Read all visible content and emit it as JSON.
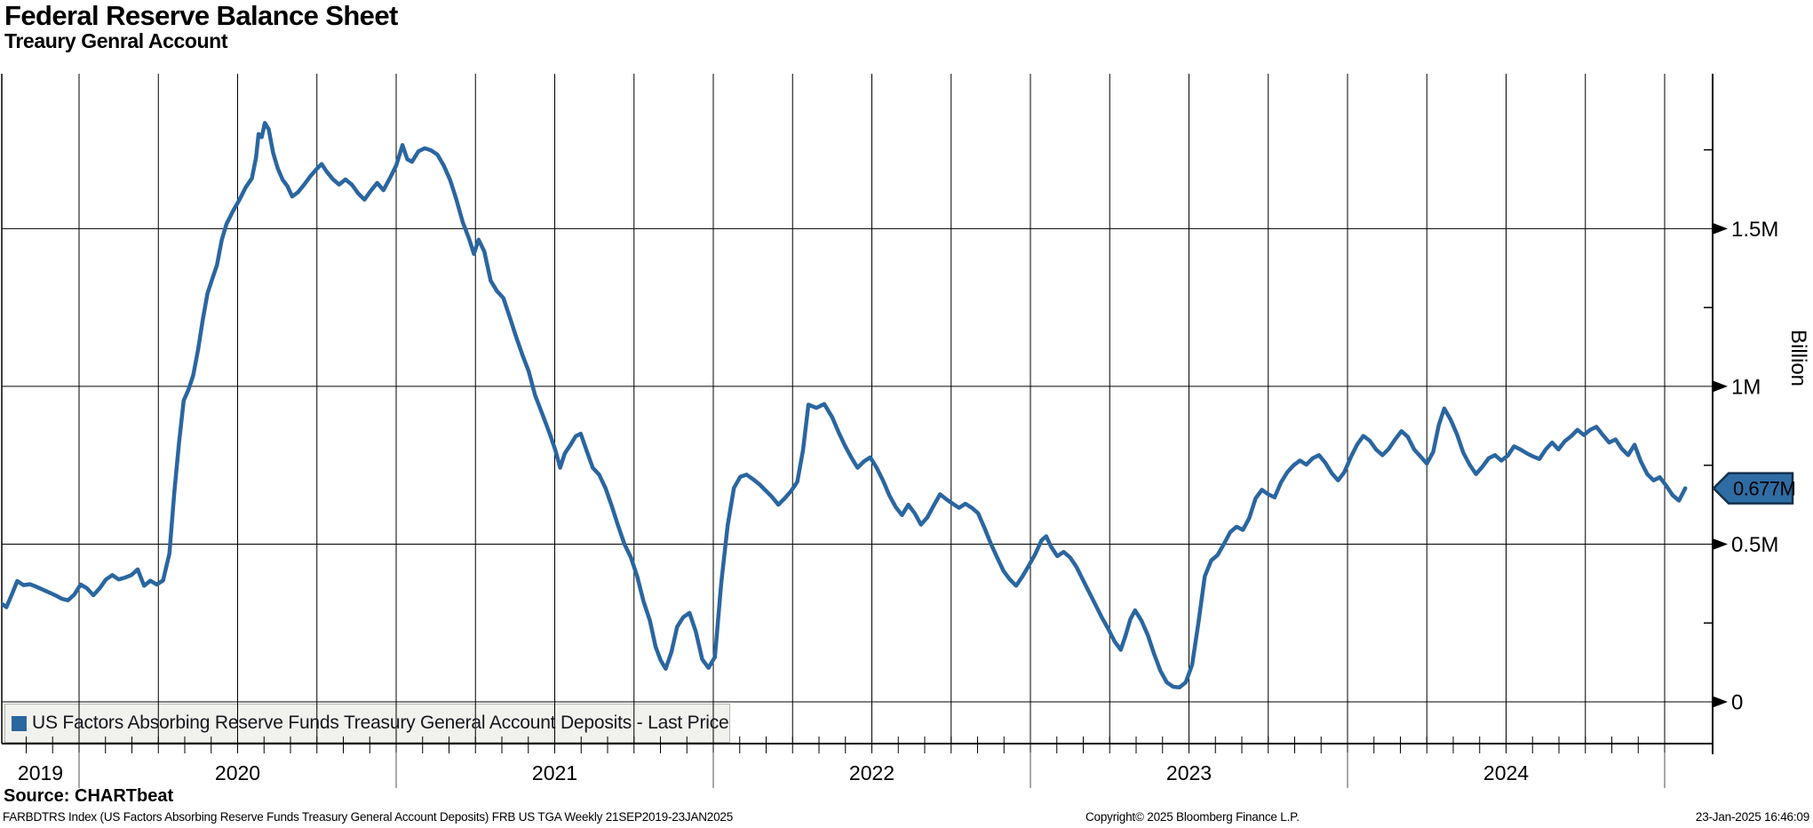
{
  "title": "Federal Reserve Balance Sheet",
  "subtitle": "Treaury Genral Account",
  "legend": {
    "swatch_color": "#2a66a0",
    "label": "US Factors Absorbing Reserve Funds Treasury General Account Deposits - Last Price"
  },
  "y_axis": {
    "title": "Billion",
    "minor_ticks": [
      0.25,
      0.75,
      1.25,
      1.75
    ]
  },
  "x_axis": {
    "year_labels": [
      "2019",
      "2020",
      "2021",
      "2022",
      "2023",
      "2024"
    ]
  },
  "last_price": {
    "label": "0.677M",
    "value": 0.677
  },
  "colors": {
    "line": "#2a66a0",
    "grid": "#000000",
    "flag_fill": "#2e6da4",
    "flag_border": "#14304d",
    "flag_text": "#ffffff",
    "year_separator": "#8a8a8a"
  },
  "footer": {
    "source": "Source: CHARTbeat",
    "description": "FARBDTRS Index (US Factors Absorbing Reserve Funds Treasury General Account Deposits) FRB US TGA  Weekly 21SEP2019-23JAN2025",
    "copyright": "Copyright© 2025 Bloomberg Finance L.P.",
    "timestamp": "23-Jan-2025 16:46:09"
  },
  "chart_data": {
    "type": "line",
    "title": "Federal Reserve Balance Sheet - Treasury General Account",
    "xlabel": "Date (weekly, 21SEP2019 - 23JAN2025)",
    "ylabel": "Billion",
    "x_range": [
      2019.751,
      2025.065
    ],
    "y_range": [
      0,
      1.9
    ],
    "y_tick_values": [
      0,
      0.5,
      1,
      1.5
    ],
    "y_tick_labels": [
      "0",
      "0.5M",
      "1M",
      "1.5M"
    ],
    "x_tick_years": [
      2019,
      2020,
      2021,
      2022,
      2023,
      2024
    ],
    "grid": "vertical quarterly lines, horizontal every 0.5M",
    "legend_position": "bottom-left",
    "series": [
      {
        "name": "US Factors Absorbing Reserve Funds Treasury General Account Deposits - Last Price",
        "color": "#2a66a0",
        "last_value": 0.677,
        "points": [
          [
            2019.751,
            0.315
          ],
          [
            2019.771,
            0.3
          ],
          [
            2019.79,
            0.345
          ],
          [
            2019.805,
            0.383
          ],
          [
            2019.825,
            0.37
          ],
          [
            2019.845,
            0.373
          ],
          [
            2019.865,
            0.365
          ],
          [
            2019.885,
            0.356
          ],
          [
            2019.905,
            0.347
          ],
          [
            2019.925,
            0.338
          ],
          [
            2019.945,
            0.327
          ],
          [
            2019.965,
            0.322
          ],
          [
            2019.985,
            0.34
          ],
          [
            2020.005,
            0.372
          ],
          [
            2020.025,
            0.36
          ],
          [
            2020.045,
            0.338
          ],
          [
            2020.065,
            0.36
          ],
          [
            2020.085,
            0.388
          ],
          [
            2020.105,
            0.402
          ],
          [
            2020.125,
            0.388
          ],
          [
            2020.145,
            0.394
          ],
          [
            2020.165,
            0.402
          ],
          [
            2020.185,
            0.42
          ],
          [
            2020.205,
            0.368
          ],
          [
            2020.225,
            0.384
          ],
          [
            2020.245,
            0.372
          ],
          [
            2020.265,
            0.385
          ],
          [
            2020.285,
            0.47
          ],
          [
            2020.3,
            0.66
          ],
          [
            2020.315,
            0.82
          ],
          [
            2020.33,
            0.955
          ],
          [
            2020.345,
            0.99
          ],
          [
            2020.36,
            1.035
          ],
          [
            2020.375,
            1.115
          ],
          [
            2020.39,
            1.21
          ],
          [
            2020.405,
            1.295
          ],
          [
            2020.42,
            1.34
          ],
          [
            2020.435,
            1.385
          ],
          [
            2020.45,
            1.465
          ],
          [
            2020.465,
            1.515
          ],
          [
            2020.485,
            1.555
          ],
          [
            2020.505,
            1.59
          ],
          [
            2020.525,
            1.63
          ],
          [
            2020.545,
            1.66
          ],
          [
            2020.558,
            1.725
          ],
          [
            2020.566,
            1.8
          ],
          [
            2020.576,
            1.79
          ],
          [
            2020.586,
            1.835
          ],
          [
            2020.598,
            1.815
          ],
          [
            2020.612,
            1.74
          ],
          [
            2020.627,
            1.69
          ],
          [
            2020.642,
            1.655
          ],
          [
            2020.657,
            1.635
          ],
          [
            2020.672,
            1.602
          ],
          [
            2020.69,
            1.615
          ],
          [
            2020.71,
            1.64
          ],
          [
            2020.73,
            1.667
          ],
          [
            2020.75,
            1.69
          ],
          [
            2020.765,
            1.705
          ],
          [
            2020.78,
            1.682
          ],
          [
            2020.8,
            1.657
          ],
          [
            2020.82,
            1.64
          ],
          [
            2020.84,
            1.656
          ],
          [
            2020.86,
            1.64
          ],
          [
            2020.88,
            1.612
          ],
          [
            2020.9,
            1.592
          ],
          [
            2020.92,
            1.62
          ],
          [
            2020.94,
            1.645
          ],
          [
            2020.96,
            1.622
          ],
          [
            2020.98,
            1.66
          ],
          [
            2021.0,
            1.7
          ],
          [
            2021.02,
            1.765
          ],
          [
            2021.035,
            1.72
          ],
          [
            2021.05,
            1.712
          ],
          [
            2021.07,
            1.745
          ],
          [
            2021.09,
            1.755
          ],
          [
            2021.11,
            1.748
          ],
          [
            2021.13,
            1.735
          ],
          [
            2021.15,
            1.7
          ],
          [
            2021.17,
            1.655
          ],
          [
            2021.19,
            1.592
          ],
          [
            2021.21,
            1.52
          ],
          [
            2021.23,
            1.468
          ],
          [
            2021.245,
            1.42
          ],
          [
            2021.26,
            1.465
          ],
          [
            2021.278,
            1.428
          ],
          [
            2021.298,
            1.335
          ],
          [
            2021.318,
            1.302
          ],
          [
            2021.338,
            1.28
          ],
          [
            2021.358,
            1.22
          ],
          [
            2021.378,
            1.158
          ],
          [
            2021.398,
            1.1
          ],
          [
            2021.418,
            1.048
          ],
          [
            2021.438,
            0.972
          ],
          [
            2021.455,
            0.928
          ],
          [
            2021.47,
            0.888
          ],
          [
            2021.486,
            0.845
          ],
          [
            2021.502,
            0.798
          ],
          [
            2021.517,
            0.742
          ],
          [
            2021.532,
            0.788
          ],
          [
            2021.55,
            0.815
          ],
          [
            2021.566,
            0.842
          ],
          [
            2021.582,
            0.85
          ],
          [
            2021.6,
            0.798
          ],
          [
            2021.62,
            0.742
          ],
          [
            2021.64,
            0.72
          ],
          [
            2021.66,
            0.678
          ],
          [
            2021.68,
            0.62
          ],
          [
            2021.7,
            0.558
          ],
          [
            2021.72,
            0.5
          ],
          [
            2021.74,
            0.458
          ],
          [
            2021.76,
            0.398
          ],
          [
            2021.78,
            0.318
          ],
          [
            2021.8,
            0.258
          ],
          [
            2021.818,
            0.175
          ],
          [
            2021.834,
            0.132
          ],
          [
            2021.85,
            0.105
          ],
          [
            2021.868,
            0.158
          ],
          [
            2021.886,
            0.238
          ],
          [
            2021.905,
            0.268
          ],
          [
            2021.925,
            0.282
          ],
          [
            2021.945,
            0.222
          ],
          [
            2021.965,
            0.135
          ],
          [
            2021.985,
            0.108
          ],
          [
            2022.005,
            0.142
          ],
          [
            2022.025,
            0.375
          ],
          [
            2022.045,
            0.558
          ],
          [
            2022.065,
            0.678
          ],
          [
            2022.085,
            0.713
          ],
          [
            2022.105,
            0.72
          ],
          [
            2022.125,
            0.706
          ],
          [
            2022.145,
            0.69
          ],
          [
            2022.165,
            0.67
          ],
          [
            2022.185,
            0.65
          ],
          [
            2022.205,
            0.625
          ],
          [
            2022.225,
            0.645
          ],
          [
            2022.245,
            0.668
          ],
          [
            2022.265,
            0.698
          ],
          [
            2022.283,
            0.798
          ],
          [
            2022.3,
            0.942
          ],
          [
            2022.325,
            0.932
          ],
          [
            2022.35,
            0.944
          ],
          [
            2022.375,
            0.902
          ],
          [
            2022.395,
            0.855
          ],
          [
            2022.415,
            0.812
          ],
          [
            2022.435,
            0.775
          ],
          [
            2022.455,
            0.742
          ],
          [
            2022.475,
            0.762
          ],
          [
            2022.495,
            0.775
          ],
          [
            2022.515,
            0.742
          ],
          [
            2022.535,
            0.702
          ],
          [
            2022.555,
            0.655
          ],
          [
            2022.575,
            0.618
          ],
          [
            2022.595,
            0.592
          ],
          [
            2022.615,
            0.625
          ],
          [
            2022.635,
            0.598
          ],
          [
            2022.655,
            0.562
          ],
          [
            2022.675,
            0.585
          ],
          [
            2022.695,
            0.622
          ],
          [
            2022.715,
            0.658
          ],
          [
            2022.735,
            0.642
          ],
          [
            2022.755,
            0.628
          ],
          [
            2022.775,
            0.615
          ],
          [
            2022.795,
            0.628
          ],
          [
            2022.815,
            0.615
          ],
          [
            2022.835,
            0.598
          ],
          [
            2022.855,
            0.552
          ],
          [
            2022.875,
            0.502
          ],
          [
            2022.895,
            0.458
          ],
          [
            2022.915,
            0.415
          ],
          [
            2022.935,
            0.388
          ],
          [
            2022.955,
            0.368
          ],
          [
            2022.975,
            0.398
          ],
          [
            2022.995,
            0.432
          ],
          [
            2023.015,
            0.468
          ],
          [
            2023.035,
            0.512
          ],
          [
            2023.05,
            0.525
          ],
          [
            2023.065,
            0.492
          ],
          [
            2023.085,
            0.462
          ],
          [
            2023.105,
            0.475
          ],
          [
            2023.125,
            0.458
          ],
          [
            2023.145,
            0.428
          ],
          [
            2023.165,
            0.388
          ],
          [
            2023.185,
            0.348
          ],
          [
            2023.205,
            0.308
          ],
          [
            2023.225,
            0.268
          ],
          [
            2023.245,
            0.232
          ],
          [
            2023.265,
            0.192
          ],
          [
            2023.285,
            0.165
          ],
          [
            2023.3,
            0.21
          ],
          [
            2023.315,
            0.262
          ],
          [
            2023.33,
            0.29
          ],
          [
            2023.35,
            0.258
          ],
          [
            2023.37,
            0.212
          ],
          [
            2023.39,
            0.152
          ],
          [
            2023.41,
            0.098
          ],
          [
            2023.43,
            0.062
          ],
          [
            2023.45,
            0.048
          ],
          [
            2023.47,
            0.046
          ],
          [
            2023.49,
            0.062
          ],
          [
            2023.51,
            0.118
          ],
          [
            2023.53,
            0.252
          ],
          [
            2023.55,
            0.398
          ],
          [
            2023.57,
            0.448
          ],
          [
            2023.59,
            0.465
          ],
          [
            2023.61,
            0.5
          ],
          [
            2023.63,
            0.538
          ],
          [
            2023.65,
            0.555
          ],
          [
            2023.67,
            0.545
          ],
          [
            2023.69,
            0.582
          ],
          [
            2023.71,
            0.645
          ],
          [
            2023.73,
            0.672
          ],
          [
            2023.75,
            0.658
          ],
          [
            2023.77,
            0.648
          ],
          [
            2023.79,
            0.695
          ],
          [
            2023.81,
            0.728
          ],
          [
            2023.83,
            0.75
          ],
          [
            2023.85,
            0.765
          ],
          [
            2023.87,
            0.752
          ],
          [
            2023.89,
            0.772
          ],
          [
            2023.91,
            0.782
          ],
          [
            2023.93,
            0.758
          ],
          [
            2023.95,
            0.725
          ],
          [
            2023.97,
            0.702
          ],
          [
            2023.99,
            0.728
          ],
          [
            2024.01,
            0.775
          ],
          [
            2024.03,
            0.815
          ],
          [
            2024.05,
            0.843
          ],
          [
            2024.07,
            0.828
          ],
          [
            2024.09,
            0.8
          ],
          [
            2024.11,
            0.782
          ],
          [
            2024.13,
            0.802
          ],
          [
            2024.15,
            0.832
          ],
          [
            2024.17,
            0.858
          ],
          [
            2024.19,
            0.84
          ],
          [
            2024.21,
            0.8
          ],
          [
            2024.23,
            0.778
          ],
          [
            2024.25,
            0.755
          ],
          [
            2024.27,
            0.792
          ],
          [
            2024.288,
            0.878
          ],
          [
            2024.305,
            0.93
          ],
          [
            2024.325,
            0.895
          ],
          [
            2024.345,
            0.848
          ],
          [
            2024.365,
            0.79
          ],
          [
            2024.385,
            0.752
          ],
          [
            2024.405,
            0.722
          ],
          [
            2024.425,
            0.745
          ],
          [
            2024.445,
            0.772
          ],
          [
            2024.465,
            0.782
          ],
          [
            2024.485,
            0.765
          ],
          [
            2024.505,
            0.78
          ],
          [
            2024.525,
            0.81
          ],
          [
            2024.545,
            0.8
          ],
          [
            2024.565,
            0.788
          ],
          [
            2024.585,
            0.778
          ],
          [
            2024.605,
            0.77
          ],
          [
            2024.625,
            0.8
          ],
          [
            2024.645,
            0.822
          ],
          [
            2024.665,
            0.8
          ],
          [
            2024.685,
            0.826
          ],
          [
            2024.705,
            0.842
          ],
          [
            2024.725,
            0.862
          ],
          [
            2024.745,
            0.846
          ],
          [
            2024.765,
            0.862
          ],
          [
            2024.785,
            0.872
          ],
          [
            2024.805,
            0.846
          ],
          [
            2024.825,
            0.822
          ],
          [
            2024.845,
            0.832
          ],
          [
            2024.865,
            0.802
          ],
          [
            2024.885,
            0.782
          ],
          [
            2024.905,
            0.815
          ],
          [
            2024.925,
            0.762
          ],
          [
            2024.945,
            0.722
          ],
          [
            2024.965,
            0.702
          ],
          [
            2024.985,
            0.712
          ],
          [
            2025.005,
            0.685
          ],
          [
            2025.025,
            0.655
          ],
          [
            2025.045,
            0.638
          ],
          [
            2025.065,
            0.677
          ]
        ]
      }
    ]
  }
}
